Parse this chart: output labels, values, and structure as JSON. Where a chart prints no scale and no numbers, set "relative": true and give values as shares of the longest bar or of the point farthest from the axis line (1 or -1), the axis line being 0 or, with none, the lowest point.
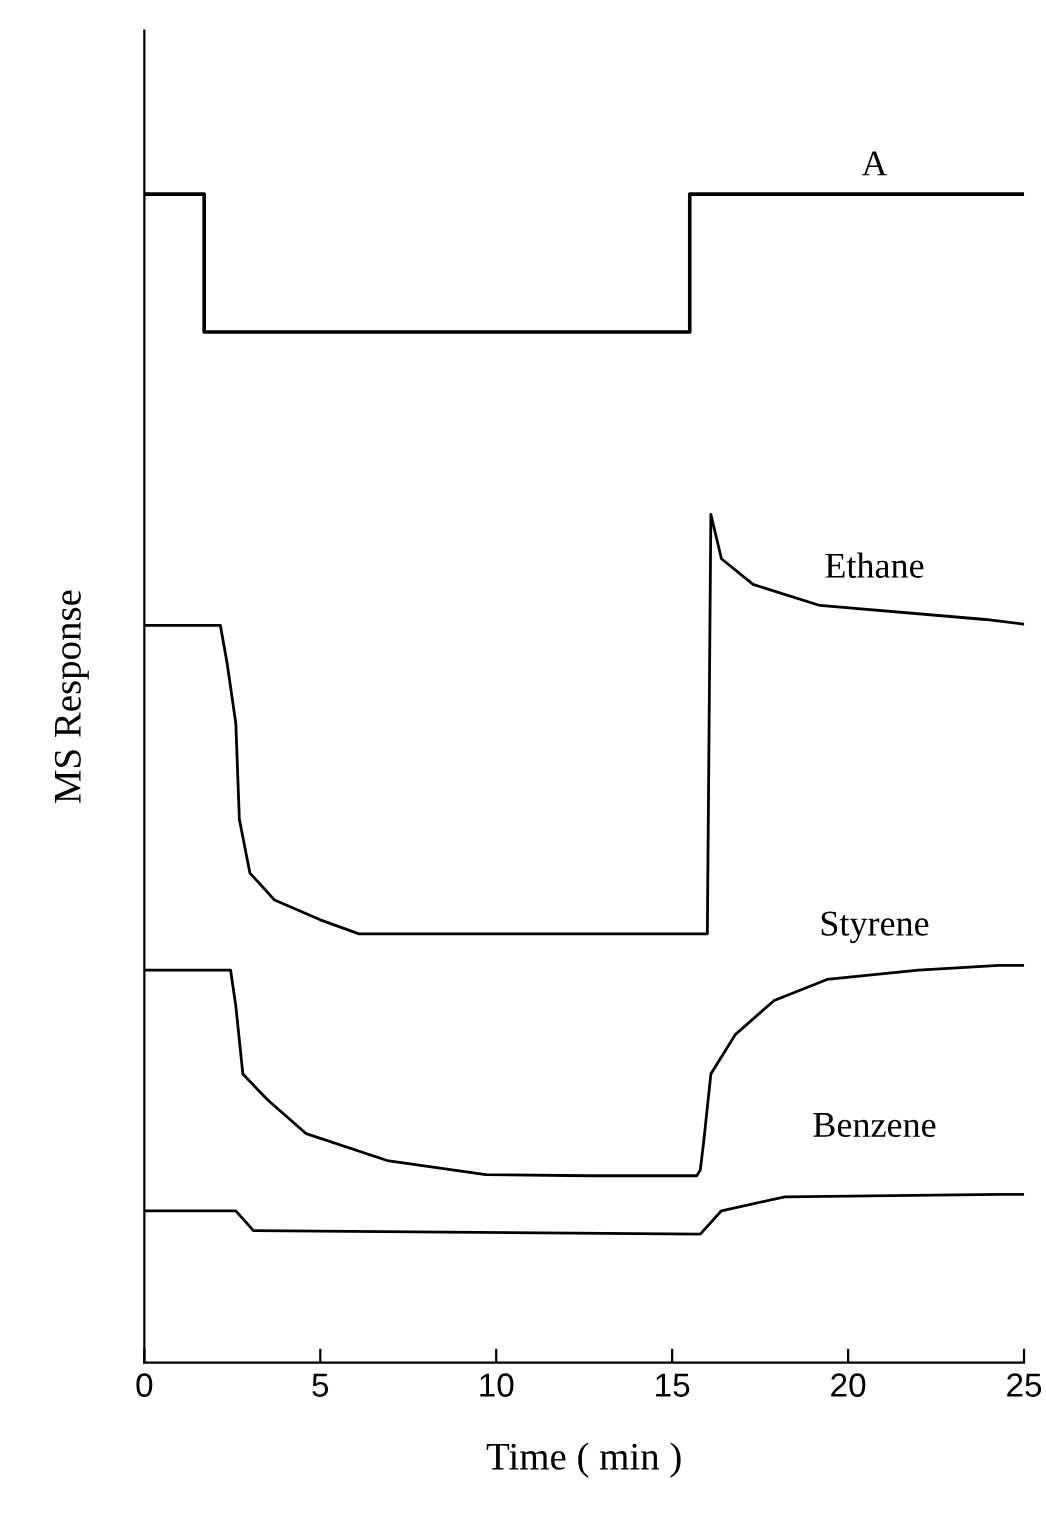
{
  "chart_data": {
    "type": "line",
    "relative": true,
    "xlabel": "Time ( min )",
    "ylabel": "MS Response",
    "xlim": [
      0,
      25
    ],
    "xticks": [
      0,
      5,
      10,
      15,
      20,
      25
    ],
    "marker": "none",
    "line_style": "solid",
    "grid": false,
    "legend": false,
    "tick_labels": "x",
    "series": [
      {
        "name": "A",
        "color": "#000000",
        "type": "step",
        "x": [
          0,
          1.7,
          15.5,
          25
        ],
        "values": [
          1,
          0.882,
          1,
          1
        ]
      },
      {
        "name": "Ethane",
        "color": "#000000",
        "x": [
          0,
          2.16,
          2.35,
          2.6,
          2.7,
          3.0,
          3.7,
          5.0,
          6.1,
          16.0,
          16.1,
          16.4,
          17.3,
          19.2,
          23.9,
          25
        ],
        "values": [
          0.631,
          0.631,
          0.599,
          0.547,
          0.465,
          0.419,
          0.396,
          0.379,
          0.367,
          0.367,
          0.726,
          0.688,
          0.666,
          0.648,
          0.636,
          0.632
        ]
      },
      {
        "name": "Styrene",
        "color": "#000000",
        "x": [
          0,
          2.45,
          2.6,
          2.8,
          3.5,
          4.6,
          6.9,
          9.7,
          12.6,
          15.7,
          15.8,
          15.9,
          16.1,
          16.8,
          17.9,
          19.4,
          22.0,
          24.3,
          25
        ],
        "values": [
          0.336,
          0.336,
          0.305,
          0.247,
          0.225,
          0.196,
          0.173,
          0.161,
          0.16,
          0.16,
          0.165,
          0.19,
          0.247,
          0.281,
          0.31,
          0.328,
          0.336,
          0.34,
          0.34
        ]
      },
      {
        "name": "Benzene",
        "color": "#000000",
        "x": [
          0,
          2.6,
          3.1,
          15.8,
          16.4,
          18.2,
          24.3,
          25
        ],
        "values": [
          0.13,
          0.13,
          0.113,
          0.11,
          0.13,
          0.142,
          0.144,
          0.144
        ]
      }
    ]
  }
}
